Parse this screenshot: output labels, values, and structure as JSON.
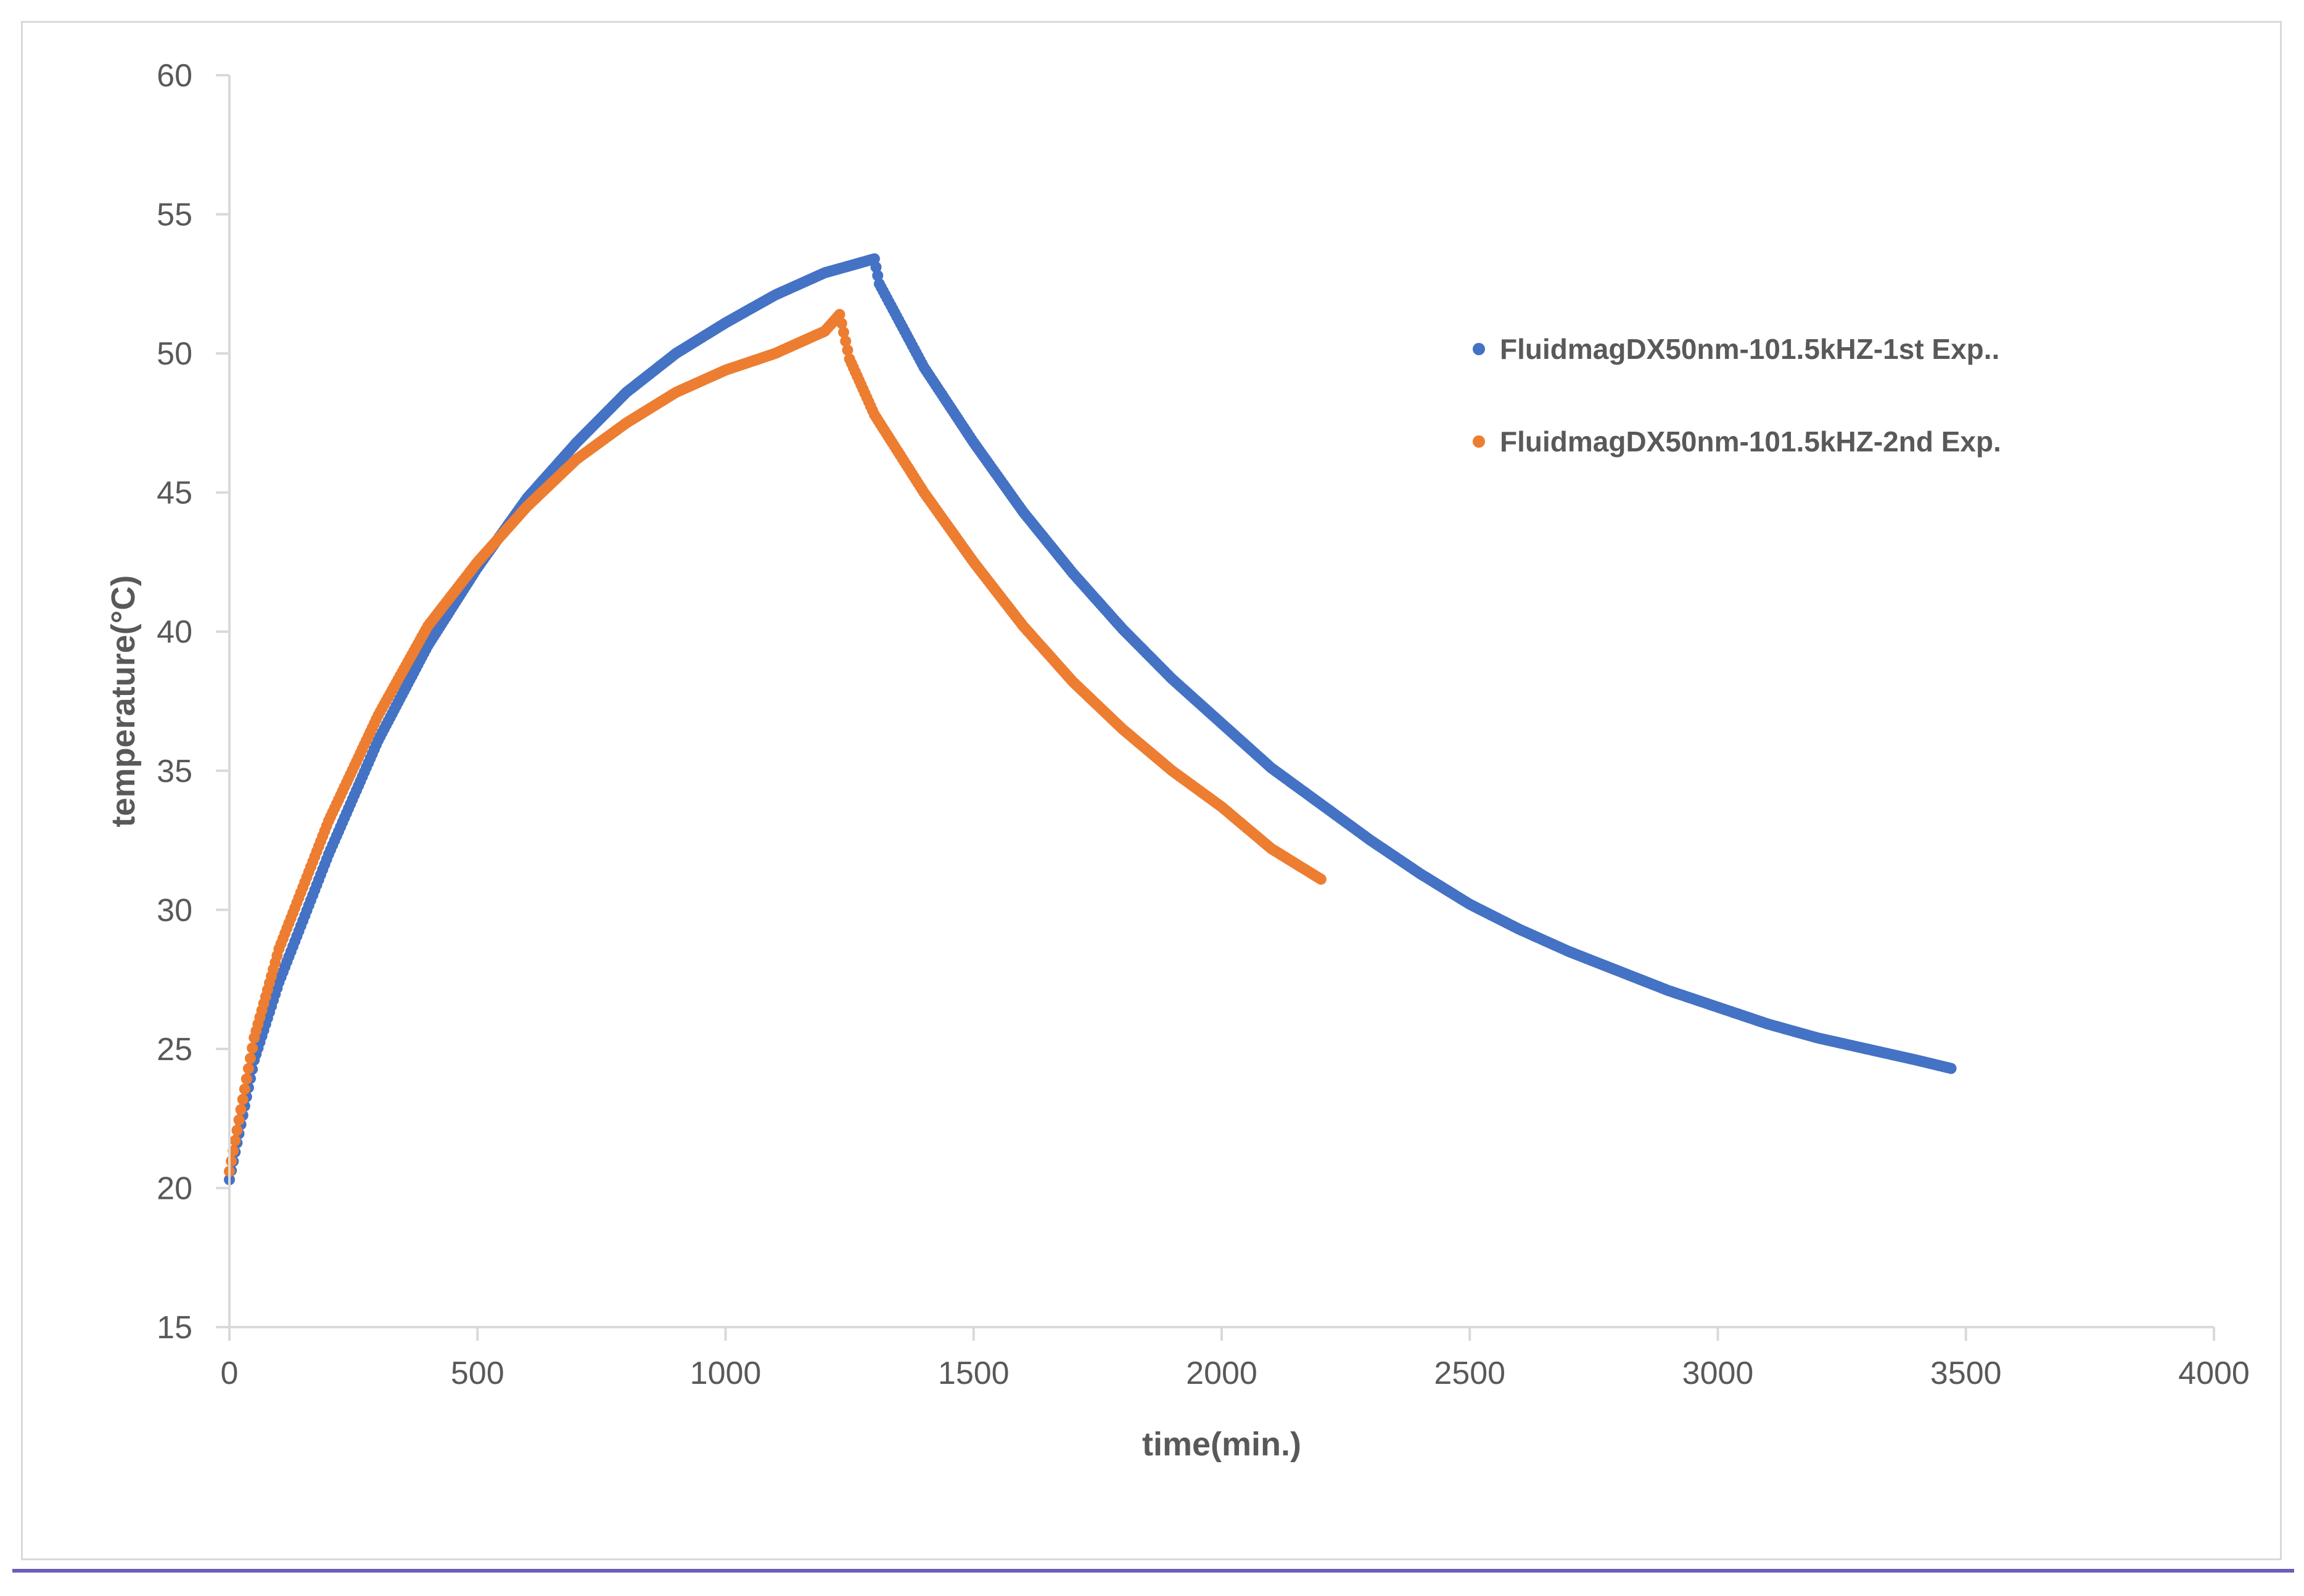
{
  "chart_data": {
    "type": "scatter",
    "title": "",
    "xlabel": "time(min.)",
    "ylabel": "temperature(°C)",
    "xlim": [
      0,
      4000
    ],
    "ylim": [
      15,
      60
    ],
    "xticks": [
      0,
      500,
      1000,
      1500,
      2000,
      2500,
      3000,
      3500,
      4000
    ],
    "yticks": [
      15,
      20,
      25,
      30,
      35,
      40,
      45,
      50,
      55,
      60
    ],
    "xtick_labels": [
      "0",
      "500",
      "1000",
      "1500",
      "2000",
      "2500",
      "3000",
      "3500",
      "4000"
    ],
    "ytick_labels": [
      "15",
      "20",
      "25",
      "30",
      "35",
      "40",
      "45",
      "50",
      "55",
      "60"
    ],
    "grid": false,
    "legend_position": "right",
    "series": [
      {
        "name": "FluidmagDX50nm-101.5kHZ-1st Exp..",
        "color": "#4472c4",
        "x": [
          0,
          50,
          100,
          200,
          300,
          400,
          500,
          600,
          700,
          800,
          900,
          1000,
          1100,
          1200,
          1300,
          1310,
          1400,
          1500,
          1600,
          1700,
          1800,
          1900,
          2000,
          2100,
          2200,
          2300,
          2400,
          2500,
          2600,
          2700,
          2800,
          2900,
          3000,
          3100,
          3200,
          3300,
          3400,
          3470
        ],
        "y": [
          20.3,
          24.6,
          27.4,
          32.0,
          36.1,
          39.5,
          42.3,
          44.8,
          46.8,
          48.6,
          50.0,
          51.1,
          52.1,
          52.9,
          53.4,
          52.5,
          49.5,
          46.8,
          44.3,
          42.1,
          40.1,
          38.3,
          36.7,
          35.1,
          33.8,
          32.5,
          31.3,
          30.2,
          29.3,
          28.5,
          27.8,
          27.1,
          26.5,
          25.9,
          25.4,
          25.0,
          24.6,
          24.3
        ]
      },
      {
        "name": "FluidmagDX50nm-101.5kHZ-2nd Exp.",
        "color": "#ed7d31",
        "x": [
          0,
          50,
          100,
          200,
          300,
          400,
          500,
          600,
          700,
          800,
          900,
          1000,
          1100,
          1200,
          1230,
          1250,
          1300,
          1400,
          1500,
          1600,
          1700,
          1800,
          1900,
          2000,
          2100,
          2200
        ],
        "y": [
          20.6,
          25.4,
          28.6,
          33.2,
          37.0,
          40.2,
          42.5,
          44.5,
          46.2,
          47.5,
          48.6,
          49.4,
          50.0,
          50.8,
          51.4,
          49.8,
          47.8,
          45.0,
          42.5,
          40.2,
          38.2,
          36.5,
          35.0,
          33.7,
          32.2,
          31.1
        ]
      }
    ]
  }
}
